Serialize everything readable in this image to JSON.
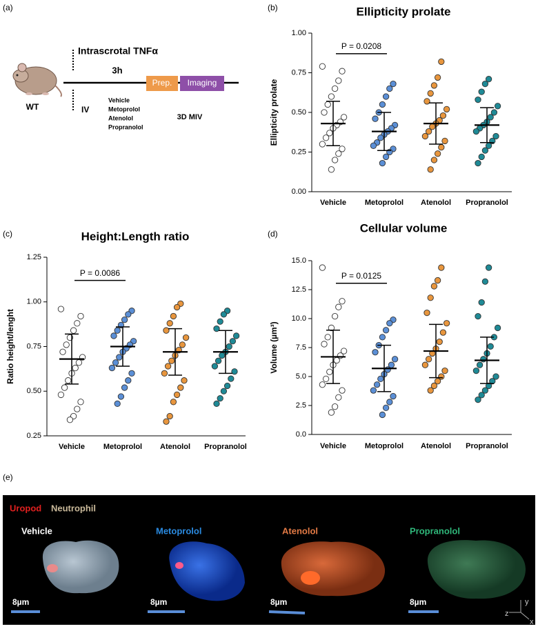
{
  "panel_labels": {
    "a": "(a)",
    "b": "(b)",
    "c": "(c)",
    "d": "(d)",
    "e": "(e)"
  },
  "schematic": {
    "stimulus": "Intrascrotal TNFα",
    "duration": "3h",
    "strain": "WT",
    "route": "IV",
    "treatments": [
      "Vehicle",
      "Metoprolol",
      "Atenolol",
      "Propranolol"
    ],
    "prep": "Prep.",
    "imaging": "Imaging",
    "method": "3D MIV"
  },
  "chart_data": [
    {
      "type": "dotplot",
      "title": "Ellipticity prolate",
      "y_label": "Ellipticity prolate",
      "categories": [
        "Vehicle",
        "Metoprolol",
        "Atenolol",
        "Propranolol"
      ],
      "colors": [
        "#ffffff",
        "#5b8fd6",
        "#e8963e",
        "#1f8a96"
      ],
      "ylim": [
        0,
        1
      ],
      "yticks": [
        {
          "value": 0,
          "label": "0.00"
        },
        {
          "value": 0.25,
          "label": "0.25"
        },
        {
          "value": 0.5,
          "label": "0.50"
        },
        {
          "value": 0.75,
          "label": "0.75"
        },
        {
          "value": 1,
          "label": "1.00"
        }
      ],
      "points": [
        [
          0.79,
          0.76,
          0.7,
          0.65,
          0.6,
          0.55,
          0.5,
          0.47,
          0.44,
          0.42,
          0.4,
          0.37,
          0.34,
          0.3,
          0.27,
          0.24,
          0.2,
          0.14
        ],
        [
          0.68,
          0.65,
          0.6,
          0.55,
          0.5,
          0.46,
          0.42,
          0.4,
          0.38,
          0.36,
          0.34,
          0.31,
          0.29,
          0.27,
          0.25,
          0.22,
          0.18
        ],
        [
          0.82,
          0.72,
          0.67,
          0.62,
          0.57,
          0.52,
          0.48,
          0.45,
          0.43,
          0.41,
          0.38,
          0.35,
          0.32,
          0.28,
          0.24,
          0.2,
          0.14
        ],
        [
          0.71,
          0.68,
          0.63,
          0.58,
          0.54,
          0.5,
          0.47,
          0.44,
          0.42,
          0.4,
          0.38,
          0.35,
          0.32,
          0.29,
          0.26,
          0.22,
          0.18
        ]
      ],
      "mean": [
        0.43,
        0.38,
        0.43,
        0.42
      ],
      "sd": [
        0.14,
        0.12,
        0.13,
        0.11
      ],
      "annotation": "P = 0.0208"
    },
    {
      "type": "dotplot",
      "title": "Height:Length ratio",
      "y_label": "Ratio height/lenght",
      "categories": [
        "Vehicle",
        "Metoprolol",
        "Atenolol",
        "Propranolol"
      ],
      "colors": [
        "#ffffff",
        "#5b8fd6",
        "#e8963e",
        "#1f8a96"
      ],
      "ylim": [
        0.25,
        1.25
      ],
      "yticks": [
        {
          "value": 0.25,
          "label": "0.25"
        },
        {
          "value": 0.5,
          "label": "0.50"
        },
        {
          "value": 0.75,
          "label": "0.75"
        },
        {
          "value": 1,
          "label": "1.00"
        },
        {
          "value": 1.25,
          "label": "1.25"
        }
      ],
      "points": [
        [
          0.96,
          0.92,
          0.88,
          0.84,
          0.8,
          0.76,
          0.72,
          0.69,
          0.66,
          0.63,
          0.6,
          0.56,
          0.52,
          0.48,
          0.44,
          0.4,
          0.36,
          0.34
        ],
        [
          0.95,
          0.93,
          0.9,
          0.87,
          0.84,
          0.81,
          0.78,
          0.76,
          0.74,
          0.72,
          0.69,
          0.66,
          0.63,
          0.6,
          0.56,
          0.52,
          0.47,
          0.43
        ],
        [
          0.99,
          0.97,
          0.92,
          0.88,
          0.84,
          0.8,
          0.76,
          0.73,
          0.7,
          0.67,
          0.64,
          0.6,
          0.56,
          0.52,
          0.48,
          0.44,
          0.36,
          0.33
        ],
        [
          0.95,
          0.93,
          0.89,
          0.85,
          0.81,
          0.78,
          0.75,
          0.72,
          0.7,
          0.67,
          0.64,
          0.61,
          0.57,
          0.53,
          0.5,
          0.46,
          0.43
        ]
      ],
      "mean": [
        0.68,
        0.75,
        0.72,
        0.72
      ],
      "sd": [
        0.14,
        0.11,
        0.13,
        0.12
      ],
      "annotation": "P = 0.0086"
    },
    {
      "type": "dotplot",
      "title": "Cellular volume",
      "y_label": "Volume (µm³)",
      "categories": [
        "Vehicle",
        "Metoprolol",
        "Atenolol",
        "Propranolol"
      ],
      "colors": [
        "#ffffff",
        "#5b8fd6",
        "#e8963e",
        "#1f8a96"
      ],
      "ylim": [
        0,
        15
      ],
      "yticks": [
        {
          "value": 0,
          "label": "0.0"
        },
        {
          "value": 2.5,
          "label": "2.5"
        },
        {
          "value": 5,
          "label": "5.0"
        },
        {
          "value": 7.5,
          "label": "7.5"
        },
        {
          "value": 10,
          "label": "10.0"
        },
        {
          "value": 12.5,
          "label": "12.5"
        },
        {
          "value": 15,
          "label": "15.0"
        }
      ],
      "points": [
        [
          14.4,
          11.5,
          11.0,
          10.2,
          9.2,
          8.4,
          7.8,
          7.2,
          6.8,
          6.4,
          6.0,
          5.4,
          4.8,
          4.3,
          3.8,
          3.2,
          2.4,
          1.9
        ],
        [
          9.9,
          9.6,
          9.0,
          8.4,
          7.7,
          7.1,
          6.5,
          6.0,
          5.6,
          5.2,
          4.8,
          4.3,
          3.8,
          3.3,
          2.8,
          2.3,
          1.7
        ],
        [
          14.4,
          13.3,
          12.8,
          11.8,
          10.5,
          9.6,
          8.8,
          8.0,
          7.4,
          7.0,
          6.5,
          6.0,
          5.5,
          5.0,
          4.6,
          4.2,
          3.8
        ],
        [
          14.4,
          13.2,
          11.4,
          10.2,
          9.2,
          8.4,
          7.6,
          7.0,
          6.5,
          6.0,
          5.5,
          5.0,
          4.6,
          4.2,
          3.8,
          3.4,
          3.0
        ]
      ],
      "mean": [
        6.7,
        5.7,
        7.2,
        6.4
      ],
      "sd": [
        2.3,
        2.0,
        2.3,
        2.0
      ],
      "annotation": "P = 0.0125"
    }
  ],
  "imaging_panel": {
    "legend": [
      "Uropod",
      "Neutrophil"
    ],
    "cells": [
      "Vehicle",
      "Metoprolol",
      "Atenolol",
      "Propranolol"
    ],
    "scale_bar": "8µm",
    "axes": [
      "y",
      "z",
      "x"
    ]
  }
}
